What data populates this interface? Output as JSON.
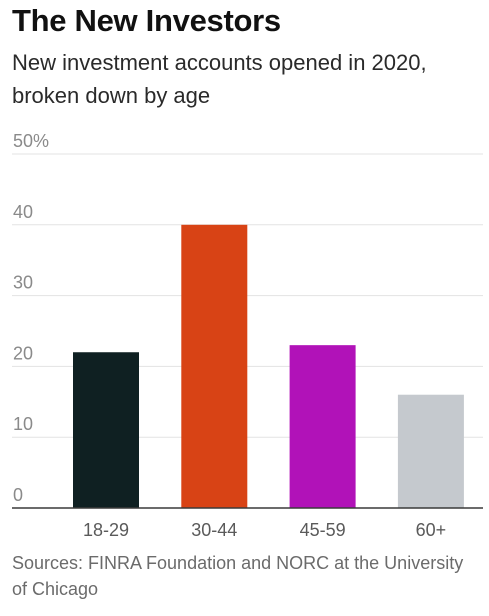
{
  "title": "The New Investors",
  "subtitle": "New investment accounts opened in 2020, broken down by age",
  "source": "Sources: FINRA Foundation and NORC at the University of Chicago",
  "chart_data": {
    "type": "bar",
    "title": "The New Investors",
    "subtitle": "New investment accounts opened in 2020, broken down by age",
    "xlabel": "",
    "ylabel": "",
    "categories": [
      "18-29",
      "30-44",
      "45-59",
      "60+"
    ],
    "values": [
      22,
      40,
      23,
      16
    ],
    "colors": [
      "#0f2022",
      "#d84315",
      "#b112b8",
      "#c5c9ce"
    ],
    "ylim": [
      0,
      50
    ],
    "yticks": [
      0,
      10,
      20,
      30,
      40,
      50
    ],
    "ytick_labels": [
      "0",
      "10",
      "20",
      "30",
      "40",
      "50%"
    ],
    "grid": true,
    "legend": "none"
  }
}
